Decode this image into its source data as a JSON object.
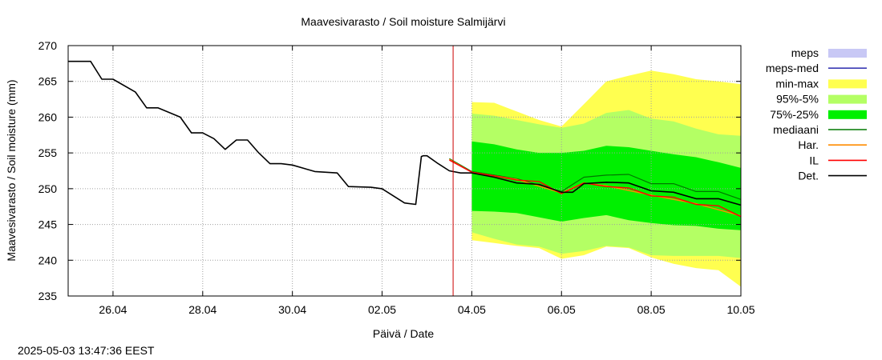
{
  "chart_data": {
    "type": "line",
    "title": "Maavesivarasto / Soil moisture   Salmijärvi",
    "xlabel": "Päivä / Date",
    "ylabel": "Maavesivarasto / Soil moisture (mm)",
    "timestamp": "2025-05-03 13:47:36 EEST",
    "xlim": [
      "2025-04-25",
      "2025-05-10"
    ],
    "ylim": [
      235,
      270
    ],
    "x_ticks": [
      "26.04",
      "28.04",
      "30.04",
      "02.05",
      "04.05",
      "06.05",
      "08.05",
      "10.05"
    ],
    "y_ticks": [
      "235",
      "240",
      "245",
      "250",
      "255",
      "260",
      "265",
      "270"
    ],
    "grid": true,
    "legend_position": "right",
    "forecast_start": "2025-05-03 14:00",
    "colors": {
      "meps": "#c8c8f5",
      "meps_med": "#3a3ab4",
      "min_max": "#ffff50",
      "p95_5": "#b4ff64",
      "p75_25": "#00f000",
      "median": "#007800",
      "har": "#ff8c00",
      "il": "#ff0000",
      "det": "#000000",
      "vline": "#cc0000"
    },
    "legend": [
      {
        "label": "meps",
        "kind": "box",
        "color": "#c8c8f5"
      },
      {
        "label": "meps-med",
        "kind": "line",
        "color": "#3a3ab4"
      },
      {
        "label": "min-max",
        "kind": "box",
        "color": "#ffff50"
      },
      {
        "label": "95%-5%",
        "kind": "box",
        "color": "#b4ff64"
      },
      {
        "label": "75%-25%",
        "kind": "box",
        "color": "#00f000"
      },
      {
        "label": "mediaani",
        "kind": "line",
        "color": "#007800"
      },
      {
        "label": "Har.",
        "kind": "line",
        "color": "#ff8c00"
      },
      {
        "label": "IL",
        "kind": "line",
        "color": "#ff0000"
      },
      {
        "label": "Det.",
        "kind": "line",
        "color": "#000000"
      }
    ],
    "series": [
      {
        "name": "Det.",
        "x": [
          "2025-04-25 00:00",
          "2025-04-25 12:00",
          "2025-04-25 18:00",
          "2025-04-26 00:00",
          "2025-04-26 12:00",
          "2025-04-26 18:00",
          "2025-04-27 00:00",
          "2025-04-27 12:00",
          "2025-04-27 18:00",
          "2025-04-28 00:00",
          "2025-04-28 06:00",
          "2025-04-28 12:00",
          "2025-04-28 18:00",
          "2025-04-29 00:00",
          "2025-04-29 06:00",
          "2025-04-29 12:00",
          "2025-04-29 18:00",
          "2025-04-30 00:00",
          "2025-04-30 12:00",
          "2025-04-30 18:00",
          "2025-05-01 00:00",
          "2025-05-01 06:00",
          "2025-05-01 18:00",
          "2025-05-02 00:00",
          "2025-05-02 12:00",
          "2025-05-02 18:00",
          "2025-05-02 21:00",
          "2025-05-02 22:00",
          "2025-05-03 00:00",
          "2025-05-03 06:00",
          "2025-05-03 12:00",
          "2025-05-03 18:00",
          "2025-05-04 00:00",
          "2025-05-04 12:00",
          "2025-05-05 00:00",
          "2025-05-05 12:00",
          "2025-05-06 00:00",
          "2025-05-06 06:00",
          "2025-05-06 12:00",
          "2025-05-07 00:00",
          "2025-05-07 12:00",
          "2025-05-08 00:00",
          "2025-05-08 12:00",
          "2025-05-09 00:00",
          "2025-05-09 12:00",
          "2025-05-10 00:00"
        ],
        "y": [
          267.8,
          267.8,
          265.3,
          265.3,
          263.5,
          261.3,
          261.3,
          260.0,
          257.8,
          257.8,
          257.0,
          255.5,
          256.8,
          256.8,
          255.0,
          253.5,
          253.5,
          253.3,
          252.4,
          252.3,
          252.2,
          250.3,
          250.2,
          250.0,
          248.0,
          247.8,
          254.5,
          254.6,
          254.6,
          253.5,
          252.5,
          252.2,
          252.2,
          251.6,
          250.8,
          250.6,
          249.5,
          249.5,
          250.7,
          250.9,
          250.8,
          249.7,
          249.5,
          248.6,
          248.6,
          247.7
        ]
      },
      {
        "name": "IL",
        "x": [
          "2025-05-03 12:00",
          "2025-05-04 00:00",
          "2025-05-04 12:00",
          "2025-05-05 00:00",
          "2025-05-05 12:00",
          "2025-05-06 00:00",
          "2025-05-06 12:00",
          "2025-05-07 00:00",
          "2025-05-07 12:00",
          "2025-05-08 00:00",
          "2025-05-08 12:00",
          "2025-05-09 00:00",
          "2025-05-09 12:00",
          "2025-05-10 00:00"
        ],
        "y": [
          254.0,
          252.3,
          251.8,
          251.2,
          251.0,
          249.3,
          250.8,
          250.3,
          250.1,
          249.0,
          248.8,
          247.8,
          247.6,
          246.1
        ]
      },
      {
        "name": "Har.",
        "x": [
          "2025-05-03 12:00",
          "2025-05-04 00:00",
          "2025-05-05 00:00",
          "2025-05-06 00:00",
          "2025-05-06 12:00",
          "2025-05-07 00:00",
          "2025-05-08 00:00",
          "2025-05-09 00:00",
          "2025-05-10 00:00"
        ],
        "y": [
          254.1,
          252.3,
          251.3,
          249.4,
          250.8,
          250.4,
          249.1,
          247.9,
          246.2
        ]
      },
      {
        "name": "mediaani",
        "x": [
          "2025-05-03 12:00",
          "2025-05-04 00:00",
          "2025-05-05 00:00",
          "2025-05-06 00:00",
          "2025-05-06 12:00",
          "2025-05-07 00:00",
          "2025-05-07 12:00",
          "2025-05-08 00:00",
          "2025-05-08 12:00",
          "2025-05-09 00:00",
          "2025-05-09 12:00",
          "2025-05-10 00:00"
        ],
        "y": [
          254.2,
          252.4,
          251.4,
          249.6,
          251.6,
          251.9,
          252.0,
          250.7,
          250.7,
          249.6,
          249.6,
          248.5
        ]
      },
      {
        "name": "75%-25%",
        "x": [
          "2025-05-04 00:00",
          "2025-05-04 12:00",
          "2025-05-05 00:00",
          "2025-05-05 12:00",
          "2025-05-06 00:00",
          "2025-05-06 12:00",
          "2025-05-07 00:00",
          "2025-05-07 12:00",
          "2025-05-08 00:00",
          "2025-05-08 12:00",
          "2025-05-09 00:00",
          "2025-05-09 12:00",
          "2025-05-10 00:00"
        ],
        "y_low": [
          246.9,
          246.8,
          246.6,
          246.0,
          245.4,
          245.9,
          246.3,
          245.6,
          245.2,
          244.9,
          244.8,
          244.4,
          244.2
        ],
        "y_high": [
          256.6,
          256.2,
          255.5,
          255.0,
          255.0,
          255.3,
          256.0,
          255.8,
          255.3,
          254.8,
          254.4,
          253.7,
          252.9
        ]
      },
      {
        "name": "95%-5%",
        "x": [
          "2025-05-04 00:00",
          "2025-05-04 12:00",
          "2025-05-05 00:00",
          "2025-05-05 12:00",
          "2025-05-06 00:00",
          "2025-05-06 12:00",
          "2025-05-07 00:00",
          "2025-05-07 12:00",
          "2025-05-08 00:00",
          "2025-05-08 12:00",
          "2025-05-09 00:00",
          "2025-05-09 12:00",
          "2025-05-10 00:00"
        ],
        "y_low": [
          243.9,
          243.0,
          242.2,
          241.9,
          240.9,
          241.3,
          242.0,
          241.8,
          240.7,
          240.6,
          240.6,
          240.6,
          240.3
        ],
        "y_high": [
          260.5,
          260.2,
          259.6,
          259.0,
          258.5,
          259.1,
          260.6,
          261.0,
          259.8,
          259.4,
          258.4,
          257.6,
          257.4
        ]
      },
      {
        "name": "min-max",
        "x": [
          "2025-05-04 00:00",
          "2025-05-04 12:00",
          "2025-05-05 00:00",
          "2025-05-05 12:00",
          "2025-05-06 00:00",
          "2025-05-06 12:00",
          "2025-05-07 00:00",
          "2025-05-07 12:00",
          "2025-05-08 00:00",
          "2025-05-08 12:00",
          "2025-05-09 00:00",
          "2025-05-09 12:00",
          "2025-05-10 00:00"
        ],
        "y_low": [
          242.8,
          242.4,
          242.0,
          241.7,
          240.2,
          240.7,
          241.9,
          241.7,
          240.4,
          239.5,
          238.9,
          238.6,
          236.3
        ],
        "y_high": [
          262.1,
          262.0,
          260.8,
          259.6,
          258.7,
          261.8,
          265.0,
          265.8,
          266.5,
          266.0,
          265.3,
          265.0,
          264.6
        ]
      }
    ]
  }
}
